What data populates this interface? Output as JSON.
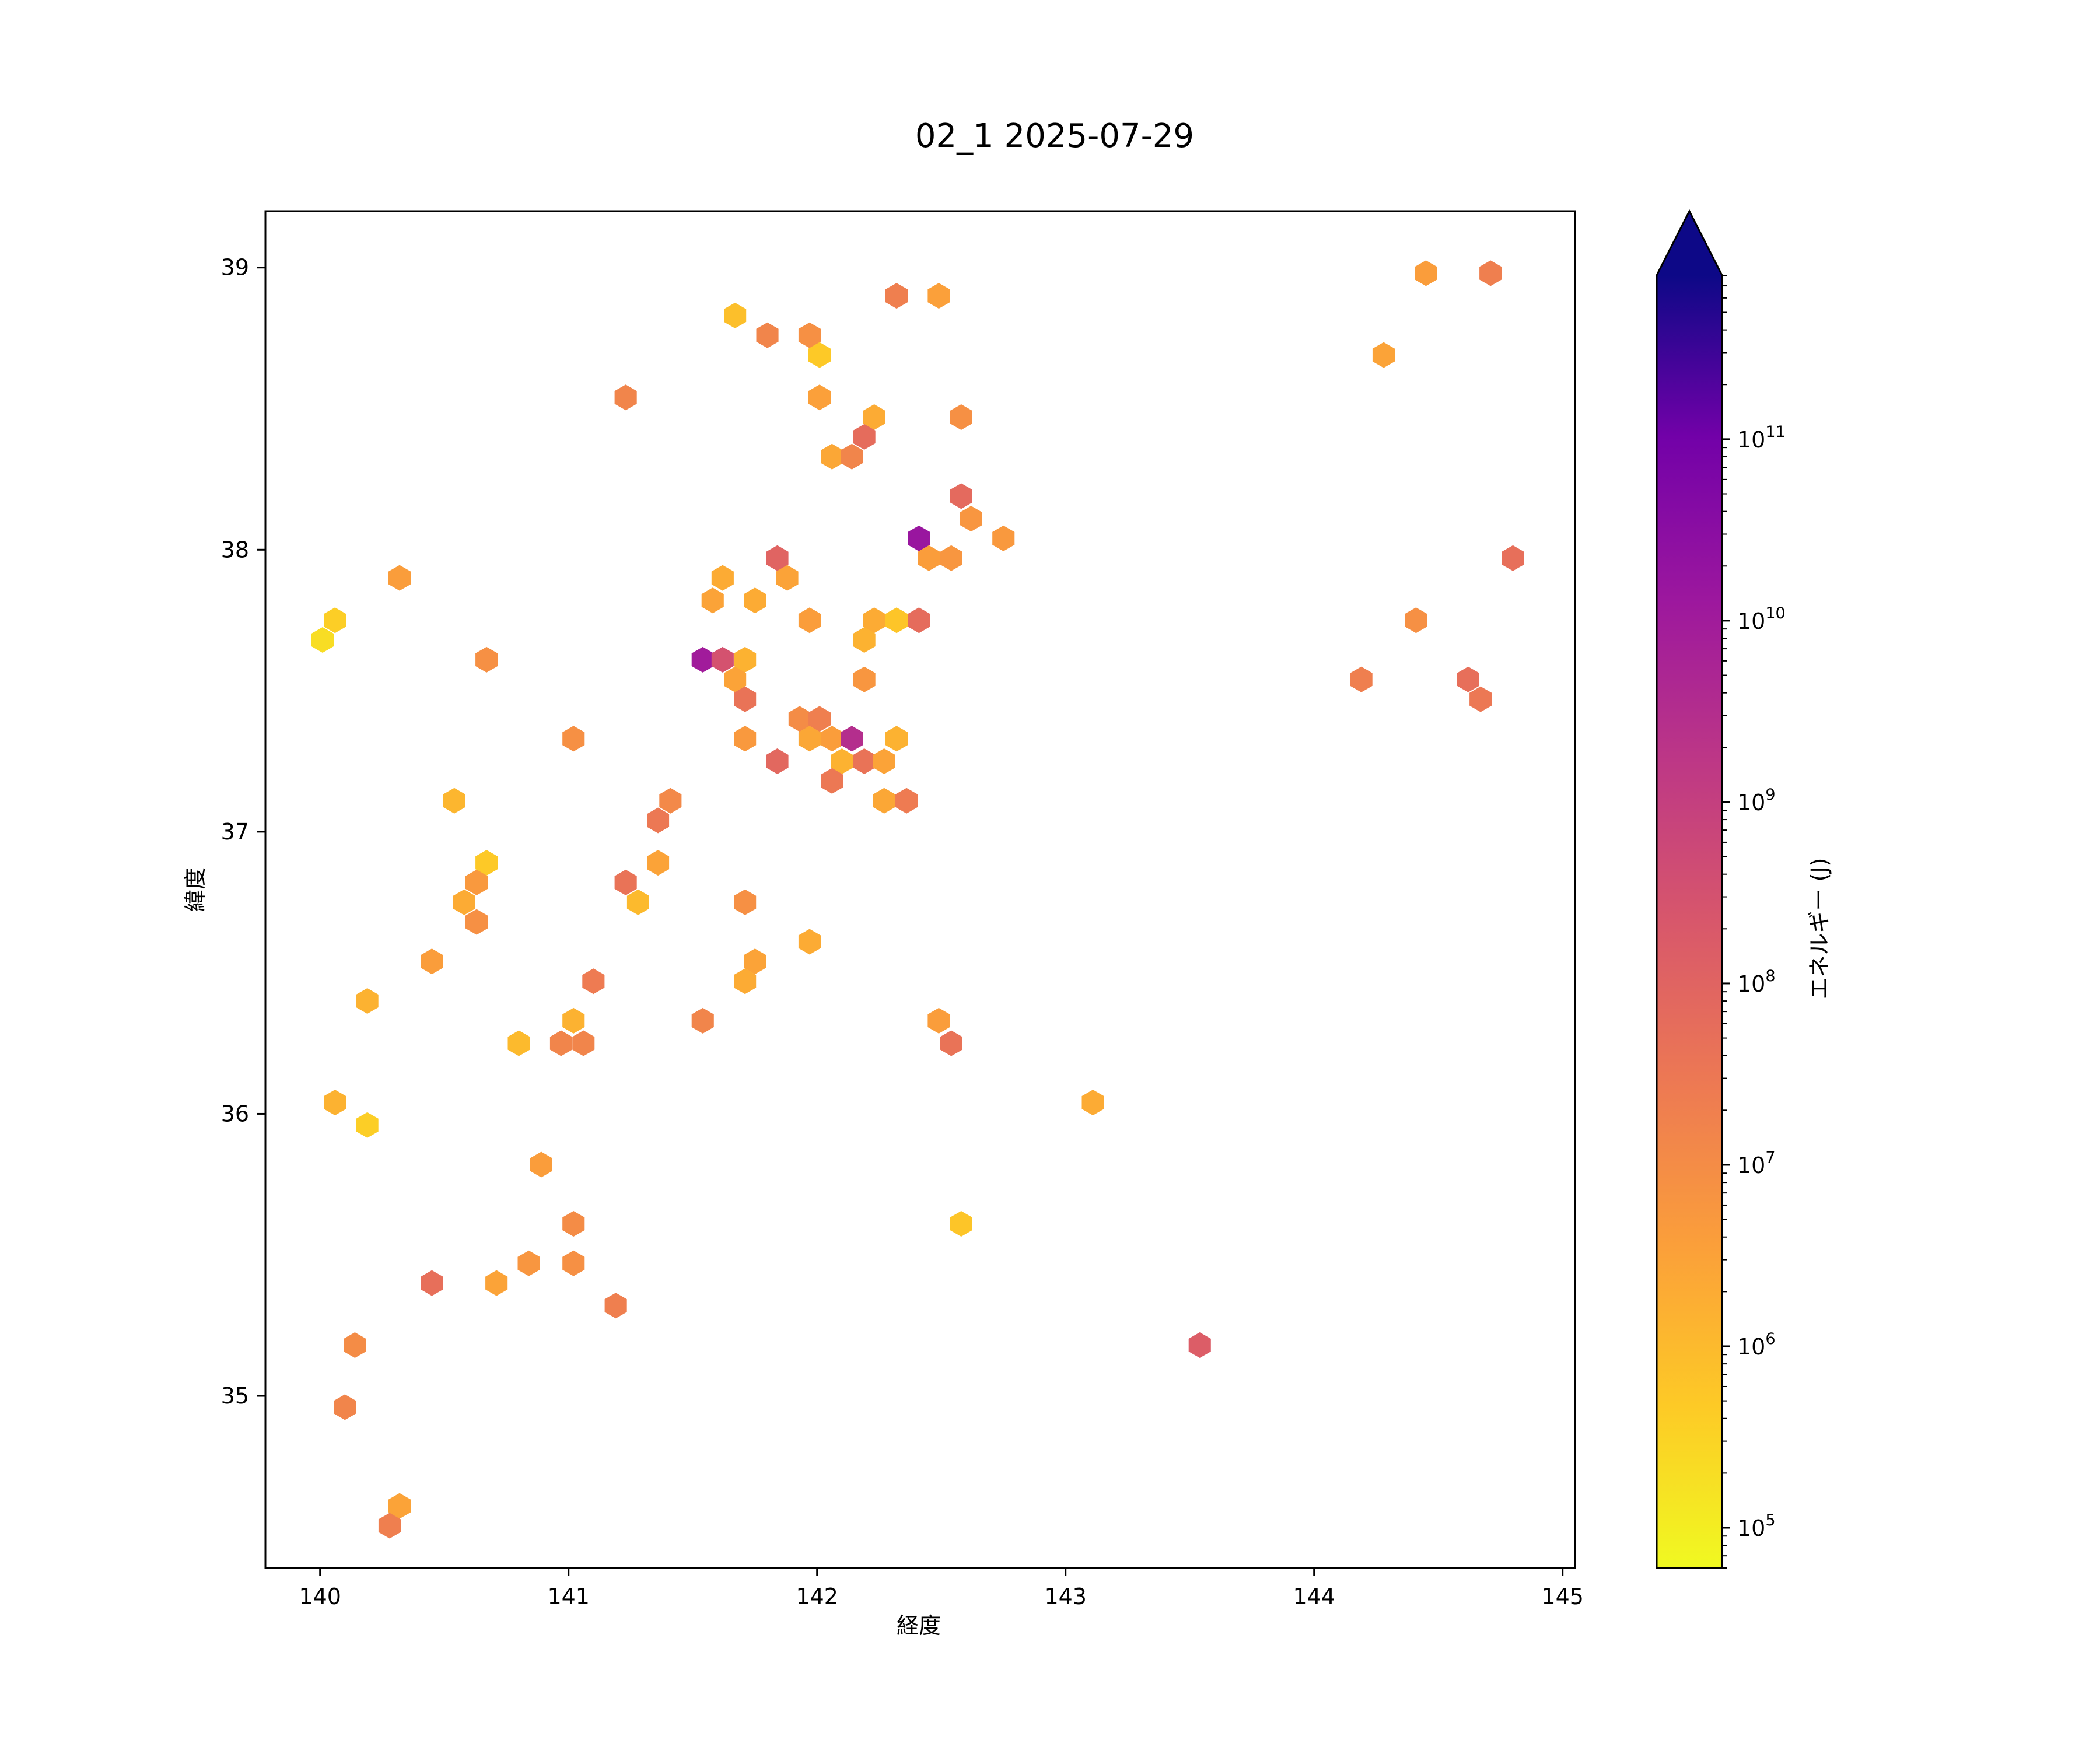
{
  "chart_data": {
    "type": "hexbin",
    "title": "02_1 2025-07-29",
    "xlabel": "経度",
    "ylabel": "緯度",
    "xlim": [
      139.78,
      145.05
    ],
    "ylim": [
      34.39,
      39.2
    ],
    "xticks": [
      "140",
      "141",
      "142",
      "143",
      "144",
      "145"
    ],
    "yticks": [
      "35",
      "36",
      "37",
      "38",
      "39"
    ],
    "colorbar": {
      "label": "エネルギー (J)",
      "scale": "log",
      "cmap": "plasma",
      "vmin": 60000,
      "vmax": 800000000000,
      "extend": "max",
      "ticks": [
        {
          "base": "10",
          "exp": "5"
        },
        {
          "base": "10",
          "exp": "6"
        },
        {
          "base": "10",
          "exp": "7"
        },
        {
          "base": "10",
          "exp": "8"
        },
        {
          "base": "10",
          "exp": "9"
        },
        {
          "base": "10",
          "exp": "10"
        },
        {
          "base": "10",
          "exp": "11"
        }
      ],
      "extend_color": "#0d0887"
    },
    "points": [
      [
        144.45,
        38.98,
        4000000
      ],
      [
        144.71,
        38.98,
        20000000
      ],
      [
        142.32,
        38.9,
        20000000
      ],
      [
        142.49,
        38.9,
        3500000
      ],
      [
        141.67,
        38.83,
        800000
      ],
      [
        141.8,
        38.76,
        15000000
      ],
      [
        141.97,
        38.76,
        8000000
      ],
      [
        142.01,
        38.69,
        500000
      ],
      [
        144.28,
        38.69,
        3000000
      ],
      [
        141.23,
        38.54,
        15000000
      ],
      [
        142.01,
        38.54,
        3500000
      ],
      [
        142.23,
        38.47,
        2000000
      ],
      [
        142.58,
        38.47,
        8000000
      ],
      [
        142.19,
        38.4,
        60000000
      ],
      [
        142.06,
        38.33,
        2500000
      ],
      [
        142.14,
        38.33,
        15000000
      ],
      [
        142.58,
        38.19,
        70000000
      ],
      [
        142.62,
        38.11,
        6000000
      ],
      [
        142.41,
        38.04,
        15000000000
      ],
      [
        142.75,
        38.04,
        5000000
      ],
      [
        141.84,
        37.97,
        100000000
      ],
      [
        142.45,
        37.97,
        4000000
      ],
      [
        142.54,
        37.97,
        6000000
      ],
      [
        144.8,
        37.97,
        50000000
      ],
      [
        140.32,
        37.9,
        4000000
      ],
      [
        141.62,
        37.9,
        2000000
      ],
      [
        141.88,
        37.9,
        3000000
      ],
      [
        141.58,
        37.82,
        3000000
      ],
      [
        141.75,
        37.82,
        2000000
      ],
      [
        140.06,
        37.75,
        400000
      ],
      [
        141.97,
        37.75,
        4000000
      ],
      [
        142.23,
        37.75,
        2000000
      ],
      [
        142.32,
        37.75,
        600000
      ],
      [
        142.41,
        37.75,
        60000000
      ],
      [
        144.41,
        37.75,
        8000000
      ],
      [
        140.01,
        37.68,
        200000
      ],
      [
        142.19,
        37.68,
        1500000
      ],
      [
        140.67,
        37.61,
        8000000
      ],
      [
        141.54,
        37.61,
        10000000000
      ],
      [
        141.62,
        37.61,
        300000000
      ],
      [
        141.71,
        37.61,
        1500000
      ],
      [
        141.67,
        37.54,
        3000000
      ],
      [
        142.19,
        37.54,
        6000000
      ],
      [
        144.19,
        37.54,
        20000000
      ],
      [
        144.62,
        37.54,
        50000000
      ],
      [
        141.71,
        37.47,
        40000000
      ],
      [
        144.67,
        37.47,
        30000000
      ],
      [
        141.93,
        37.4,
        10000000
      ],
      [
        142.01,
        37.4,
        20000000
      ],
      [
        141.02,
        37.33,
        8000000
      ],
      [
        141.71,
        37.33,
        5000000
      ],
      [
        141.97,
        37.33,
        2500000
      ],
      [
        142.06,
        37.33,
        4000000
      ],
      [
        142.14,
        37.33,
        3000000000
      ],
      [
        142.32,
        37.33,
        1500000
      ],
      [
        141.84,
        37.25,
        80000000
      ],
      [
        142.1,
        37.25,
        1500000
      ],
      [
        142.19,
        37.25,
        40000000
      ],
      [
        142.27,
        37.25,
        3000000
      ],
      [
        142.06,
        37.18,
        30000000
      ],
      [
        140.54,
        37.11,
        1200000
      ],
      [
        141.41,
        37.11,
        12000000
      ],
      [
        142.27,
        37.11,
        2500000
      ],
      [
        142.36,
        37.11,
        25000000
      ],
      [
        141.36,
        37.04,
        30000000
      ],
      [
        140.67,
        36.89,
        500000
      ],
      [
        141.36,
        36.89,
        3000000
      ],
      [
        140.63,
        36.82,
        5000000
      ],
      [
        141.23,
        36.82,
        40000000
      ],
      [
        140.58,
        36.75,
        2000000
      ],
      [
        141.28,
        36.75,
        1000000
      ],
      [
        141.71,
        36.75,
        8000000
      ],
      [
        140.63,
        36.68,
        8000000
      ],
      [
        141.97,
        36.61,
        2000000
      ],
      [
        140.45,
        36.54,
        4000000
      ],
      [
        141.75,
        36.54,
        3000000
      ],
      [
        141.1,
        36.47,
        25000000
      ],
      [
        141.71,
        36.47,
        2000000
      ],
      [
        140.19,
        36.4,
        1500000
      ],
      [
        141.02,
        36.33,
        1500000
      ],
      [
        141.54,
        36.33,
        15000000
      ],
      [
        142.49,
        36.33,
        4000000
      ],
      [
        140.8,
        36.25,
        1000000
      ],
      [
        140.97,
        36.25,
        15000000
      ],
      [
        141.06,
        36.25,
        15000000
      ],
      [
        142.54,
        36.25,
        40000000
      ],
      [
        140.06,
        36.04,
        1500000
      ],
      [
        143.11,
        36.04,
        2000000
      ],
      [
        140.19,
        35.96,
        400000
      ],
      [
        140.89,
        35.82,
        4000000
      ],
      [
        141.02,
        35.61,
        10000000
      ],
      [
        142.58,
        35.61,
        600000
      ],
      [
        140.84,
        35.47,
        6000000
      ],
      [
        141.02,
        35.47,
        8000000
      ],
      [
        140.45,
        35.4,
        50000000
      ],
      [
        140.71,
        35.4,
        3000000
      ],
      [
        141.19,
        35.32,
        20000000
      ],
      [
        140.14,
        35.18,
        10000000
      ],
      [
        143.54,
        35.18,
        150000000
      ],
      [
        140.1,
        34.96,
        15000000
      ],
      [
        140.32,
        34.61,
        3000000
      ],
      [
        140.28,
        34.54,
        20000000
      ]
    ]
  }
}
